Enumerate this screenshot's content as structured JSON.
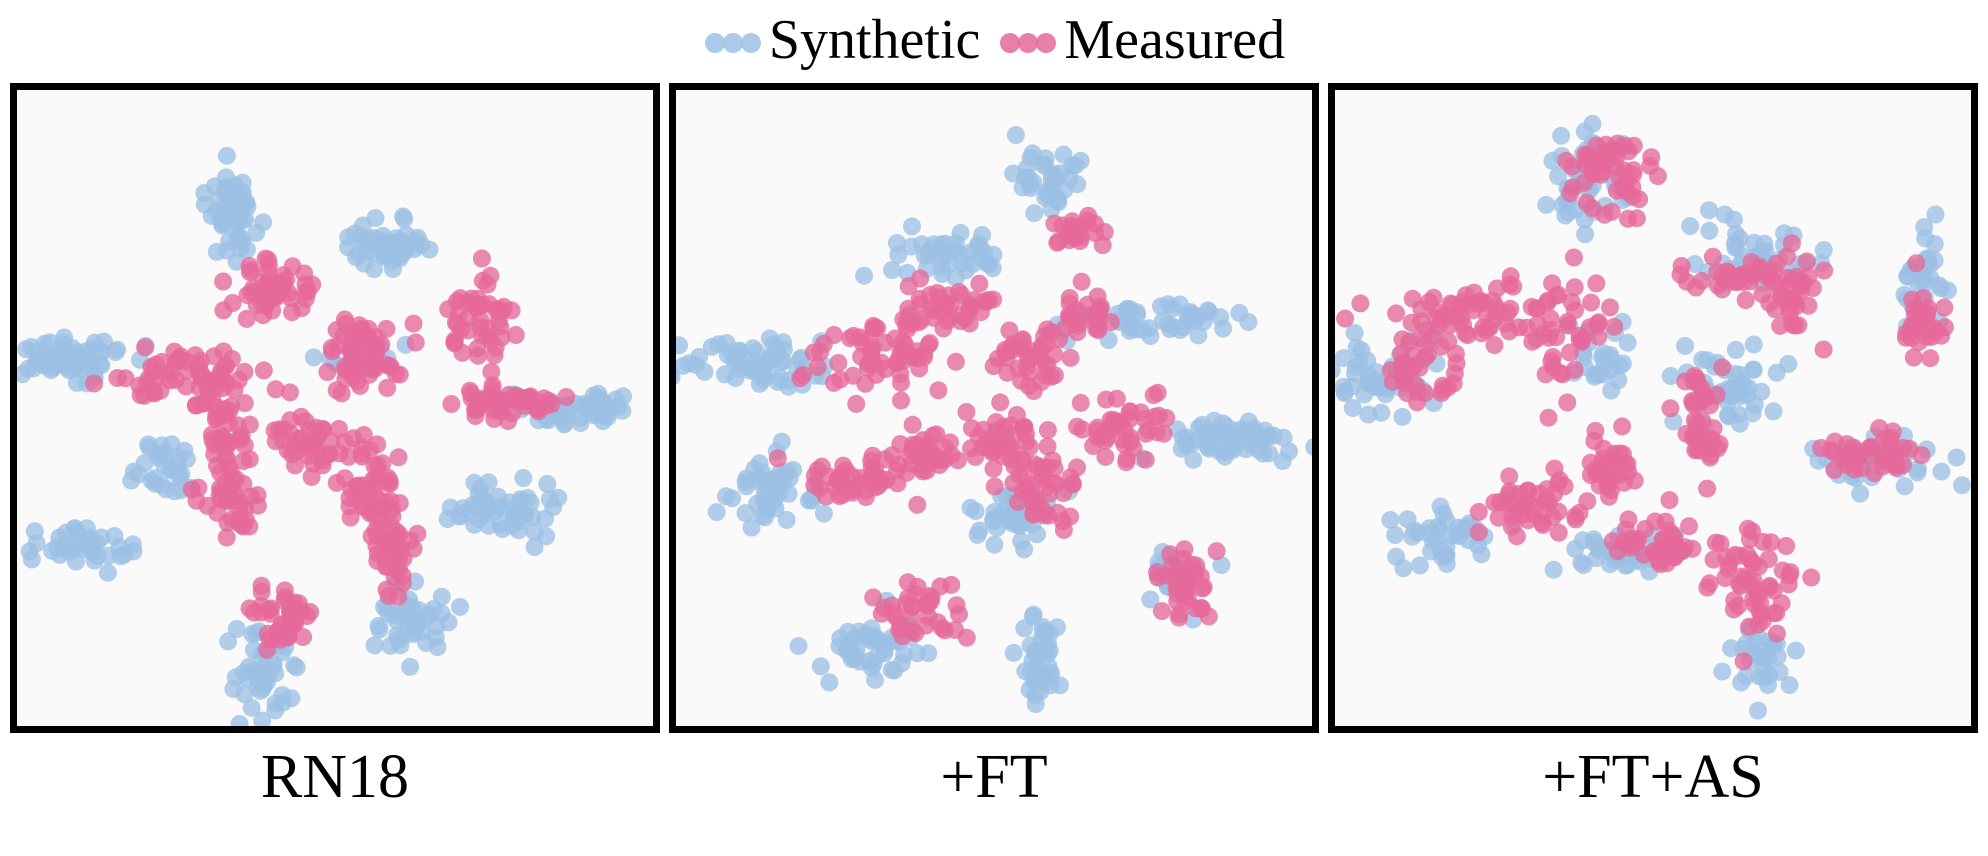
{
  "legend": {
    "synthetic_label": "Synthetic",
    "measured_label": "Measured"
  },
  "colors": {
    "synthetic": "#9cc0e4",
    "measured": "#e5699a"
  },
  "chart_data": [
    {
      "type": "scatter",
      "title": "RN18",
      "xlim": [
        0,
        100
      ],
      "ylim": [
        0,
        100
      ],
      "grid": false,
      "legend": "top-center",
      "series": [
        {
          "name": "Synthetic",
          "clusters": [
            {
              "x": 34,
              "y": 80,
              "sx": 1.8,
              "sy": 3.2,
              "n": 55
            },
            {
              "x": 58,
              "y": 76,
              "sx": 3.5,
              "sy": 1.8,
              "n": 50
            },
            {
              "x": 8,
              "y": 58,
              "sx": 5.5,
              "sy": 1.6,
              "n": 65
            },
            {
              "x": 88,
              "y": 50,
              "sx": 5.0,
              "sy": 1.4,
              "n": 55
            },
            {
              "x": 23,
              "y": 41,
              "sx": 2.2,
              "sy": 2.4,
              "n": 30
            },
            {
              "x": 10,
              "y": 28,
              "sx": 4.5,
              "sy": 1.6,
              "n": 40
            },
            {
              "x": 76,
              "y": 34,
              "sx": 4.5,
              "sy": 2.2,
              "n": 55
            },
            {
              "x": 62,
              "y": 17,
              "sx": 2.4,
              "sy": 2.6,
              "n": 45
            },
            {
              "x": 39,
              "y": 8,
              "sx": 2.6,
              "sy": 3.6,
              "n": 45
            },
            {
              "x": 54,
              "y": 59,
              "sx": 3.0,
              "sy": 1.2,
              "n": 15
            }
          ]
        },
        {
          "name": "Measured",
          "clusters": [
            {
              "x": 40,
              "y": 69,
              "sx": 3.2,
              "sy": 2.4,
              "n": 55
            },
            {
              "x": 54,
              "y": 58,
              "sx": 3.4,
              "sy": 3.0,
              "n": 60
            },
            {
              "x": 73,
              "y": 64,
              "sx": 2.8,
              "sy": 3.4,
              "n": 45
            },
            {
              "x": 77,
              "y": 51,
              "sx": 4.5,
              "sy": 1.2,
              "n": 45
            },
            {
              "x": 26,
              "y": 55,
              "sx": 6.0,
              "sy": 2.0,
              "n": 55
            },
            {
              "x": 32,
              "y": 48,
              "sx": 2.0,
              "sy": 3.5,
              "n": 40
            },
            {
              "x": 34,
              "y": 37,
              "sx": 2.2,
              "sy": 3.2,
              "n": 40
            },
            {
              "x": 46,
              "y": 44,
              "sx": 4.0,
              "sy": 2.2,
              "n": 45
            },
            {
              "x": 56,
              "y": 37,
              "sx": 2.4,
              "sy": 3.2,
              "n": 45
            },
            {
              "x": 59,
              "y": 27,
              "sx": 1.8,
              "sy": 3.0,
              "n": 35
            },
            {
              "x": 42,
              "y": 17,
              "sx": 2.0,
              "sy": 3.0,
              "n": 40
            }
          ]
        }
      ]
    },
    {
      "type": "scatter",
      "title": "+FT",
      "xlim": [
        0,
        100
      ],
      "ylim": [
        0,
        100
      ],
      "grid": false,
      "legend": "top-center",
      "series": [
        {
          "name": "Synthetic",
          "clusters": [
            {
              "x": 59,
              "y": 86,
              "sx": 2.4,
              "sy": 2.4,
              "n": 35
            },
            {
              "x": 41,
              "y": 74,
              "sx": 4.5,
              "sy": 1.6,
              "n": 40
            },
            {
              "x": 12,
              "y": 57,
              "sx": 6.0,
              "sy": 2.0,
              "n": 60
            },
            {
              "x": 76,
              "y": 64,
              "sx": 6.5,
              "sy": 1.6,
              "n": 50
            },
            {
              "x": 15,
              "y": 37,
              "sx": 3.2,
              "sy": 2.8,
              "n": 50
            },
            {
              "x": 88,
              "y": 45,
              "sx": 6.0,
              "sy": 1.6,
              "n": 60
            },
            {
              "x": 54,
              "y": 33,
              "sx": 3.6,
              "sy": 2.4,
              "n": 40
            },
            {
              "x": 79,
              "y": 24,
              "sx": 2.4,
              "sy": 2.2,
              "n": 25
            },
            {
              "x": 30,
              "y": 12,
              "sx": 3.4,
              "sy": 2.4,
              "n": 45
            },
            {
              "x": 57,
              "y": 11,
              "sx": 1.6,
              "sy": 4.0,
              "n": 40
            }
          ]
        },
        {
          "name": "Measured",
          "clusters": [
            {
              "x": 62,
              "y": 78,
              "sx": 2.4,
              "sy": 1.4,
              "n": 25
            },
            {
              "x": 43,
              "y": 66,
              "sx": 4.0,
              "sy": 1.8,
              "n": 40
            },
            {
              "x": 33,
              "y": 58,
              "sx": 6.0,
              "sy": 2.6,
              "n": 60
            },
            {
              "x": 56,
              "y": 58,
              "sx": 3.2,
              "sy": 2.6,
              "n": 40
            },
            {
              "x": 64,
              "y": 65,
              "sx": 2.0,
              "sy": 1.8,
              "n": 25
            },
            {
              "x": 27,
              "y": 39,
              "sx": 5.5,
              "sy": 1.8,
              "n": 45
            },
            {
              "x": 38,
              "y": 43,
              "sx": 3.0,
              "sy": 2.0,
              "n": 35
            },
            {
              "x": 51,
              "y": 44,
              "sx": 3.6,
              "sy": 2.4,
              "n": 40
            },
            {
              "x": 58,
              "y": 37,
              "sx": 2.4,
              "sy": 3.2,
              "n": 40
            },
            {
              "x": 71,
              "y": 47,
              "sx": 4.0,
              "sy": 2.4,
              "n": 45
            },
            {
              "x": 80,
              "y": 22,
              "sx": 2.4,
              "sy": 3.0,
              "n": 35
            },
            {
              "x": 38,
              "y": 18,
              "sx": 3.0,
              "sy": 2.4,
              "n": 35
            }
          ]
        }
      ]
    },
    {
      "type": "scatter",
      "title": "+FT+AS",
      "xlim": [
        0,
        100
      ],
      "ylim": [
        0,
        100
      ],
      "grid": false,
      "legend": "top-center",
      "series": [
        {
          "name": "Synthetic",
          "clusters": [
            {
              "x": 39,
              "y": 85,
              "sx": 3.5,
              "sy": 3.5,
              "n": 40
            },
            {
              "x": 66,
              "y": 73,
              "sx": 4.5,
              "sy": 3.0,
              "n": 40
            },
            {
              "x": 92,
              "y": 70,
              "sx": 2.0,
              "sy": 3.5,
              "n": 30
            },
            {
              "x": 8,
              "y": 55,
              "sx": 3.5,
              "sy": 2.8,
              "n": 50
            },
            {
              "x": 42,
              "y": 58,
              "sx": 3.0,
              "sy": 3.0,
              "n": 25
            },
            {
              "x": 61,
              "y": 53,
              "sx": 4.0,
              "sy": 3.2,
              "n": 45
            },
            {
              "x": 87,
              "y": 42,
              "sx": 5.0,
              "sy": 2.0,
              "n": 40
            },
            {
              "x": 17,
              "y": 30,
              "sx": 4.5,
              "sy": 1.8,
              "n": 40
            },
            {
              "x": 46,
              "y": 27,
              "sx": 5.0,
              "sy": 1.8,
              "n": 40
            },
            {
              "x": 67,
              "y": 11,
              "sx": 2.2,
              "sy": 3.0,
              "n": 30
            }
          ]
        },
        {
          "name": "Measured",
          "clusters": [
            {
              "x": 44,
              "y": 87,
              "sx": 3.5,
              "sy": 3.2,
              "n": 50
            },
            {
              "x": 63,
              "y": 70,
              "sx": 4.5,
              "sy": 1.8,
              "n": 30
            },
            {
              "x": 72,
              "y": 68,
              "sx": 2.0,
              "sy": 4.0,
              "n": 35
            },
            {
              "x": 92,
              "y": 64,
              "sx": 2.0,
              "sy": 3.0,
              "n": 30
            },
            {
              "x": 20,
              "y": 64,
              "sx": 6.0,
              "sy": 3.0,
              "n": 60
            },
            {
              "x": 36,
              "y": 62,
              "sx": 3.5,
              "sy": 4.0,
              "n": 45
            },
            {
              "x": 13,
              "y": 55,
              "sx": 3.0,
              "sy": 2.5,
              "n": 30
            },
            {
              "x": 57,
              "y": 48,
              "sx": 2.0,
              "sy": 4.5,
              "n": 40
            },
            {
              "x": 84,
              "y": 43,
              "sx": 4.5,
              "sy": 1.6,
              "n": 40
            },
            {
              "x": 31,
              "y": 35,
              "sx": 4.5,
              "sy": 2.2,
              "n": 45
            },
            {
              "x": 43,
              "y": 40,
              "sx": 2.0,
              "sy": 3.0,
              "n": 30
            },
            {
              "x": 50,
              "y": 29,
              "sx": 4.0,
              "sy": 1.8,
              "n": 40
            },
            {
              "x": 66,
              "y": 22,
              "sx": 3.0,
              "sy": 4.5,
              "n": 55
            }
          ]
        }
      ]
    }
  ]
}
